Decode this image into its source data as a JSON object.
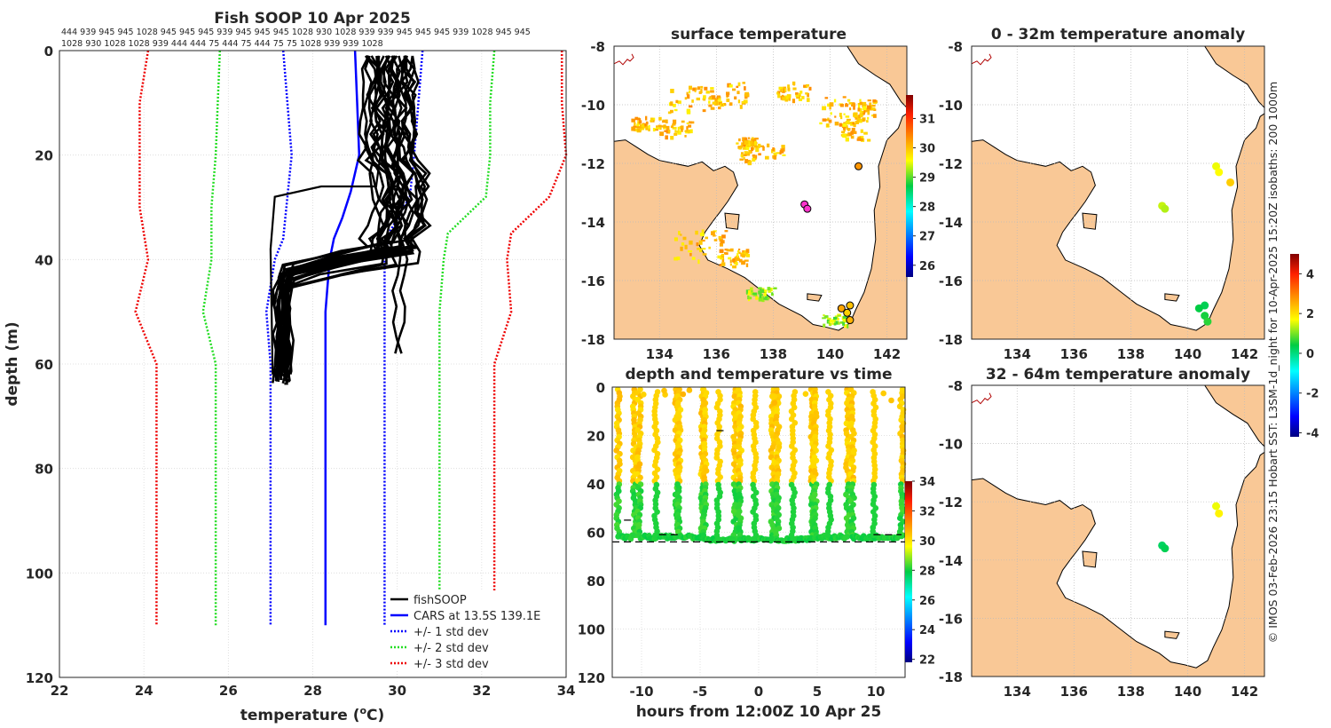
{
  "credit": "© IMOS 03-Feb-2026 23:15 Hobart SST: L3SM-1d_night for 10-Apr-2025 15:20Z isobaths: 200  1000m",
  "colors": {
    "land": "#f9c896",
    "grid": "#d9d9d9",
    "fish": "#000000",
    "cars": "#0000ff",
    "sd1": "#0000ff",
    "sd2": "#22dd22",
    "sd3": "#ee0000",
    "coast": "#000000",
    "river": "#b00000"
  },
  "chart_data": [
    {
      "id": "profile",
      "type": "line",
      "title": "Fish SOOP 10 Apr 2025",
      "xlabel": "temperature (oC)",
      "xlabel_main": "temperature (",
      "xlabel_sup": "o",
      "xlabel_end": "C)",
      "ylabel": "depth (m)",
      "xlim": [
        22,
        34
      ],
      "ylim": [
        120,
        0
      ],
      "xticks": [
        "22",
        "24",
        "26",
        "28",
        "30",
        "32",
        "34"
      ],
      "yticks": [
        "0",
        "20",
        "40",
        "60",
        "80",
        "100",
        "120"
      ],
      "top_labels": [
        "444 939 945 945 1028 945 945 945 939 945 945 945 1028 930 1028 939 939 945 945 945 939 1028 945 945",
        "1028 930 1028 1028 939 444 444 75 444 75 444 75 75 1028 939 939 1028"
      ],
      "legend": [
        "fishSOOP",
        "CARS at 13.5S 139.1E",
        "+/- 1 std dev",
        "+/- 2 std dev",
        "+/- 3 std dev"
      ],
      "series": [
        {
          "name": "CARS at 13.5S 139.1E",
          "style": "solid",
          "color": "#0000ff",
          "points": [
            [
              29.0,
              0
            ],
            [
              29.05,
              10
            ],
            [
              29.1,
              20
            ],
            [
              28.9,
              27
            ],
            [
              28.7,
              32
            ],
            [
              28.5,
              36
            ],
            [
              28.4,
              40
            ],
            [
              28.3,
              50
            ],
            [
              28.3,
              60
            ],
            [
              28.3,
              110
            ]
          ]
        },
        {
          "name": "+1 std",
          "style": "dotted",
          "color": "#0000ff",
          "points": [
            [
              30.6,
              0
            ],
            [
              30.5,
              10
            ],
            [
              30.4,
              20
            ],
            [
              30.3,
              28
            ],
            [
              29.8,
              35
            ],
            [
              29.7,
              40
            ],
            [
              29.7,
              50
            ],
            [
              29.7,
              60
            ],
            [
              29.7,
              110
            ]
          ]
        },
        {
          "name": "-1 std",
          "style": "dotted",
          "color": "#0000ff",
          "points": [
            [
              27.3,
              0
            ],
            [
              27.4,
              10
            ],
            [
              27.5,
              20
            ],
            [
              27.4,
              28
            ],
            [
              27.3,
              36
            ],
            [
              27.1,
              40
            ],
            [
              26.9,
              50
            ],
            [
              27.0,
              60
            ],
            [
              27.0,
              110
            ]
          ]
        },
        {
          "name": "+2 std",
          "style": "dotted",
          "color": "#22dd22",
          "points": [
            [
              32.3,
              0
            ],
            [
              32.2,
              10
            ],
            [
              32.2,
              20
            ],
            [
              32.1,
              28
            ],
            [
              31.2,
              35
            ],
            [
              31.1,
              40
            ],
            [
              31.0,
              50
            ],
            [
              31.0,
              60
            ],
            [
              31.0,
              110
            ]
          ]
        },
        {
          "name": "-2 std",
          "style": "dotted",
          "color": "#22dd22",
          "points": [
            [
              25.8,
              0
            ],
            [
              25.75,
              10
            ],
            [
              25.7,
              20
            ],
            [
              25.6,
              30
            ],
            [
              25.6,
              40
            ],
            [
              25.4,
              50
            ],
            [
              25.7,
              60
            ],
            [
              25.7,
              110
            ]
          ]
        },
        {
          "name": "+3 std",
          "style": "dotted",
          "color": "#ee0000",
          "points": [
            [
              33.9,
              0
            ],
            [
              33.9,
              10
            ],
            [
              34.0,
              20
            ],
            [
              33.6,
              28
            ],
            [
              32.7,
              35
            ],
            [
              32.6,
              40
            ],
            [
              32.7,
              50
            ],
            [
              32.3,
              60
            ],
            [
              32.3,
              110
            ]
          ]
        },
        {
          "name": "-3 std",
          "style": "dotted",
          "color": "#ee0000",
          "points": [
            [
              24.1,
              0
            ],
            [
              23.9,
              10
            ],
            [
              23.9,
              20
            ],
            [
              23.9,
              30
            ],
            [
              24.1,
              40
            ],
            [
              23.8,
              50
            ],
            [
              24.3,
              60
            ],
            [
              24.3,
              110
            ]
          ]
        }
      ],
      "fish_band": {
        "upper_temp": [
          29.2,
          30.4
        ],
        "lower_temp": [
          27.1,
          27.5
        ],
        "thermocline_depth": [
          38,
          43
        ],
        "max_depth": [
          61,
          64
        ],
        "count": 24
      },
      "fish_outlier": [
        [
          29.9,
          2
        ],
        [
          29.5,
          26
        ],
        [
          28.2,
          26
        ],
        [
          27.1,
          28
        ],
        [
          27.0,
          38
        ],
        [
          27.05,
          62
        ]
      ]
    },
    {
      "id": "sst",
      "type": "heatmap",
      "title": "surface temperature",
      "xlim": [
        132.4,
        142.7
      ],
      "ylim": [
        -18,
        -8
      ],
      "xticks": [
        "134",
        "136",
        "138",
        "140",
        "142"
      ],
      "yticks": [
        "-8",
        "-10",
        "-12",
        "-14",
        "-16",
        "-18"
      ],
      "colorbar": {
        "min": 25.6,
        "max": 31.8,
        "ticks": [
          "26",
          "27",
          "28",
          "29",
          "30",
          "31"
        ]
      },
      "stations": [
        {
          "lon": 139.1,
          "lat": -13.4,
          "temp": 31.2,
          "marker": "magenta"
        },
        {
          "lon": 139.2,
          "lat": -13.55,
          "temp": 31.2,
          "marker": "magenta"
        },
        {
          "lon": 141.0,
          "lat": -12.1,
          "temp": 30.3
        },
        {
          "lon": 140.4,
          "lat": -16.95,
          "temp": 30.2
        },
        {
          "lon": 140.7,
          "lat": -16.85,
          "temp": 30.0
        },
        {
          "lon": 140.6,
          "lat": -17.1,
          "temp": 29.9
        },
        {
          "lon": 140.7,
          "lat": -17.35,
          "temp": 30.1
        }
      ]
    },
    {
      "id": "anomaly-0-32",
      "type": "scatter",
      "title": "0 - 32m temperature anomaly",
      "xlim": [
        132.4,
        142.7
      ],
      "ylim": [
        -18,
        -8
      ],
      "xticks": [
        "134",
        "136",
        "138",
        "140",
        "142"
      ],
      "yticks": [
        "-8",
        "-10",
        "-12",
        "-14",
        "-16",
        "-18"
      ],
      "colorbar": {
        "min": -4.2,
        "max": 5.0,
        "ticks": [
          "4",
          "2",
          "0",
          "-2",
          "-4"
        ]
      },
      "points": [
        {
          "lon": 139.1,
          "lat": -13.45,
          "anom": 1.4
        },
        {
          "lon": 139.2,
          "lat": -13.55,
          "anom": 1.3
        },
        {
          "lon": 141.0,
          "lat": -12.1,
          "anom": 1.6
        },
        {
          "lon": 141.1,
          "lat": -12.3,
          "anom": 1.7
        },
        {
          "lon": 141.5,
          "lat": -12.65,
          "anom": 2.2
        },
        {
          "lon": 140.6,
          "lat": -16.85,
          "anom": 0.3
        },
        {
          "lon": 140.4,
          "lat": -16.95,
          "anom": 0.4
        },
        {
          "lon": 140.6,
          "lat": -17.2,
          "anom": 0.5
        },
        {
          "lon": 140.7,
          "lat": -17.4,
          "anom": 0.6
        }
      ]
    },
    {
      "id": "anomaly-32-64",
      "type": "scatter",
      "title": "32 - 64m temperature anomaly",
      "xlim": [
        132.4,
        142.7
      ],
      "ylim": [
        -18,
        -8
      ],
      "xticks": [
        "134",
        "136",
        "138",
        "140",
        "142"
      ],
      "yticks": [
        "-8",
        "-10",
        "-12",
        "-14",
        "-16",
        "-18"
      ],
      "points": [
        {
          "lon": 139.1,
          "lat": -13.5,
          "anom": 0.2
        },
        {
          "lon": 139.2,
          "lat": -13.6,
          "anom": 0.3
        },
        {
          "lon": 141.0,
          "lat": -12.15,
          "anom": 1.6
        },
        {
          "lon": 141.1,
          "lat": -12.4,
          "anom": 1.8
        }
      ]
    },
    {
      "id": "timeseries",
      "type": "scatter",
      "title": "depth and temperature vs time",
      "xlabel": "hours from 12:00Z 10 Apr 25",
      "xlim": [
        -12.5,
        12.5
      ],
      "ylim": [
        120,
        0
      ],
      "xticks": [
        "-10",
        "-5",
        "0",
        "5",
        "10"
      ],
      "yticks": [
        "0",
        "20",
        "40",
        "60",
        "80",
        "100",
        "120"
      ],
      "colorbar": {
        "min": 21.8,
        "max": 34,
        "ticks": [
          "34",
          "32",
          "30",
          "28",
          "26",
          "24",
          "22"
        ]
      },
      "bottom_depth": 64,
      "dives": [
        {
          "start": -12.0,
          "end": -10.6,
          "floor": 62
        },
        {
          "start": -10.2,
          "end": -7.0,
          "floor": 62
        },
        {
          "start": -6.8,
          "end": -4.8,
          "floor": 62
        },
        {
          "start": -4.6,
          "end": -2.0,
          "floor": 63
        },
        {
          "start": -1.6,
          "end": 1.2,
          "floor": 63
        },
        {
          "start": 1.6,
          "end": 4.6,
          "floor": 63
        },
        {
          "start": 4.8,
          "end": 7.6,
          "floor": 62
        },
        {
          "start": 8.0,
          "end": 12.2,
          "floor": 62
        }
      ],
      "dashes": [
        {
          "x0": -11.5,
          "x1": -10.5,
          "y": 55
        },
        {
          "x0": -3.6,
          "x1": -2.7,
          "y": 18
        },
        {
          "x0": -8.5,
          "x1": -6.6,
          "y": 61
        },
        {
          "x0": 9.8,
          "x1": 12.2,
          "y": 61
        }
      ]
    }
  ]
}
